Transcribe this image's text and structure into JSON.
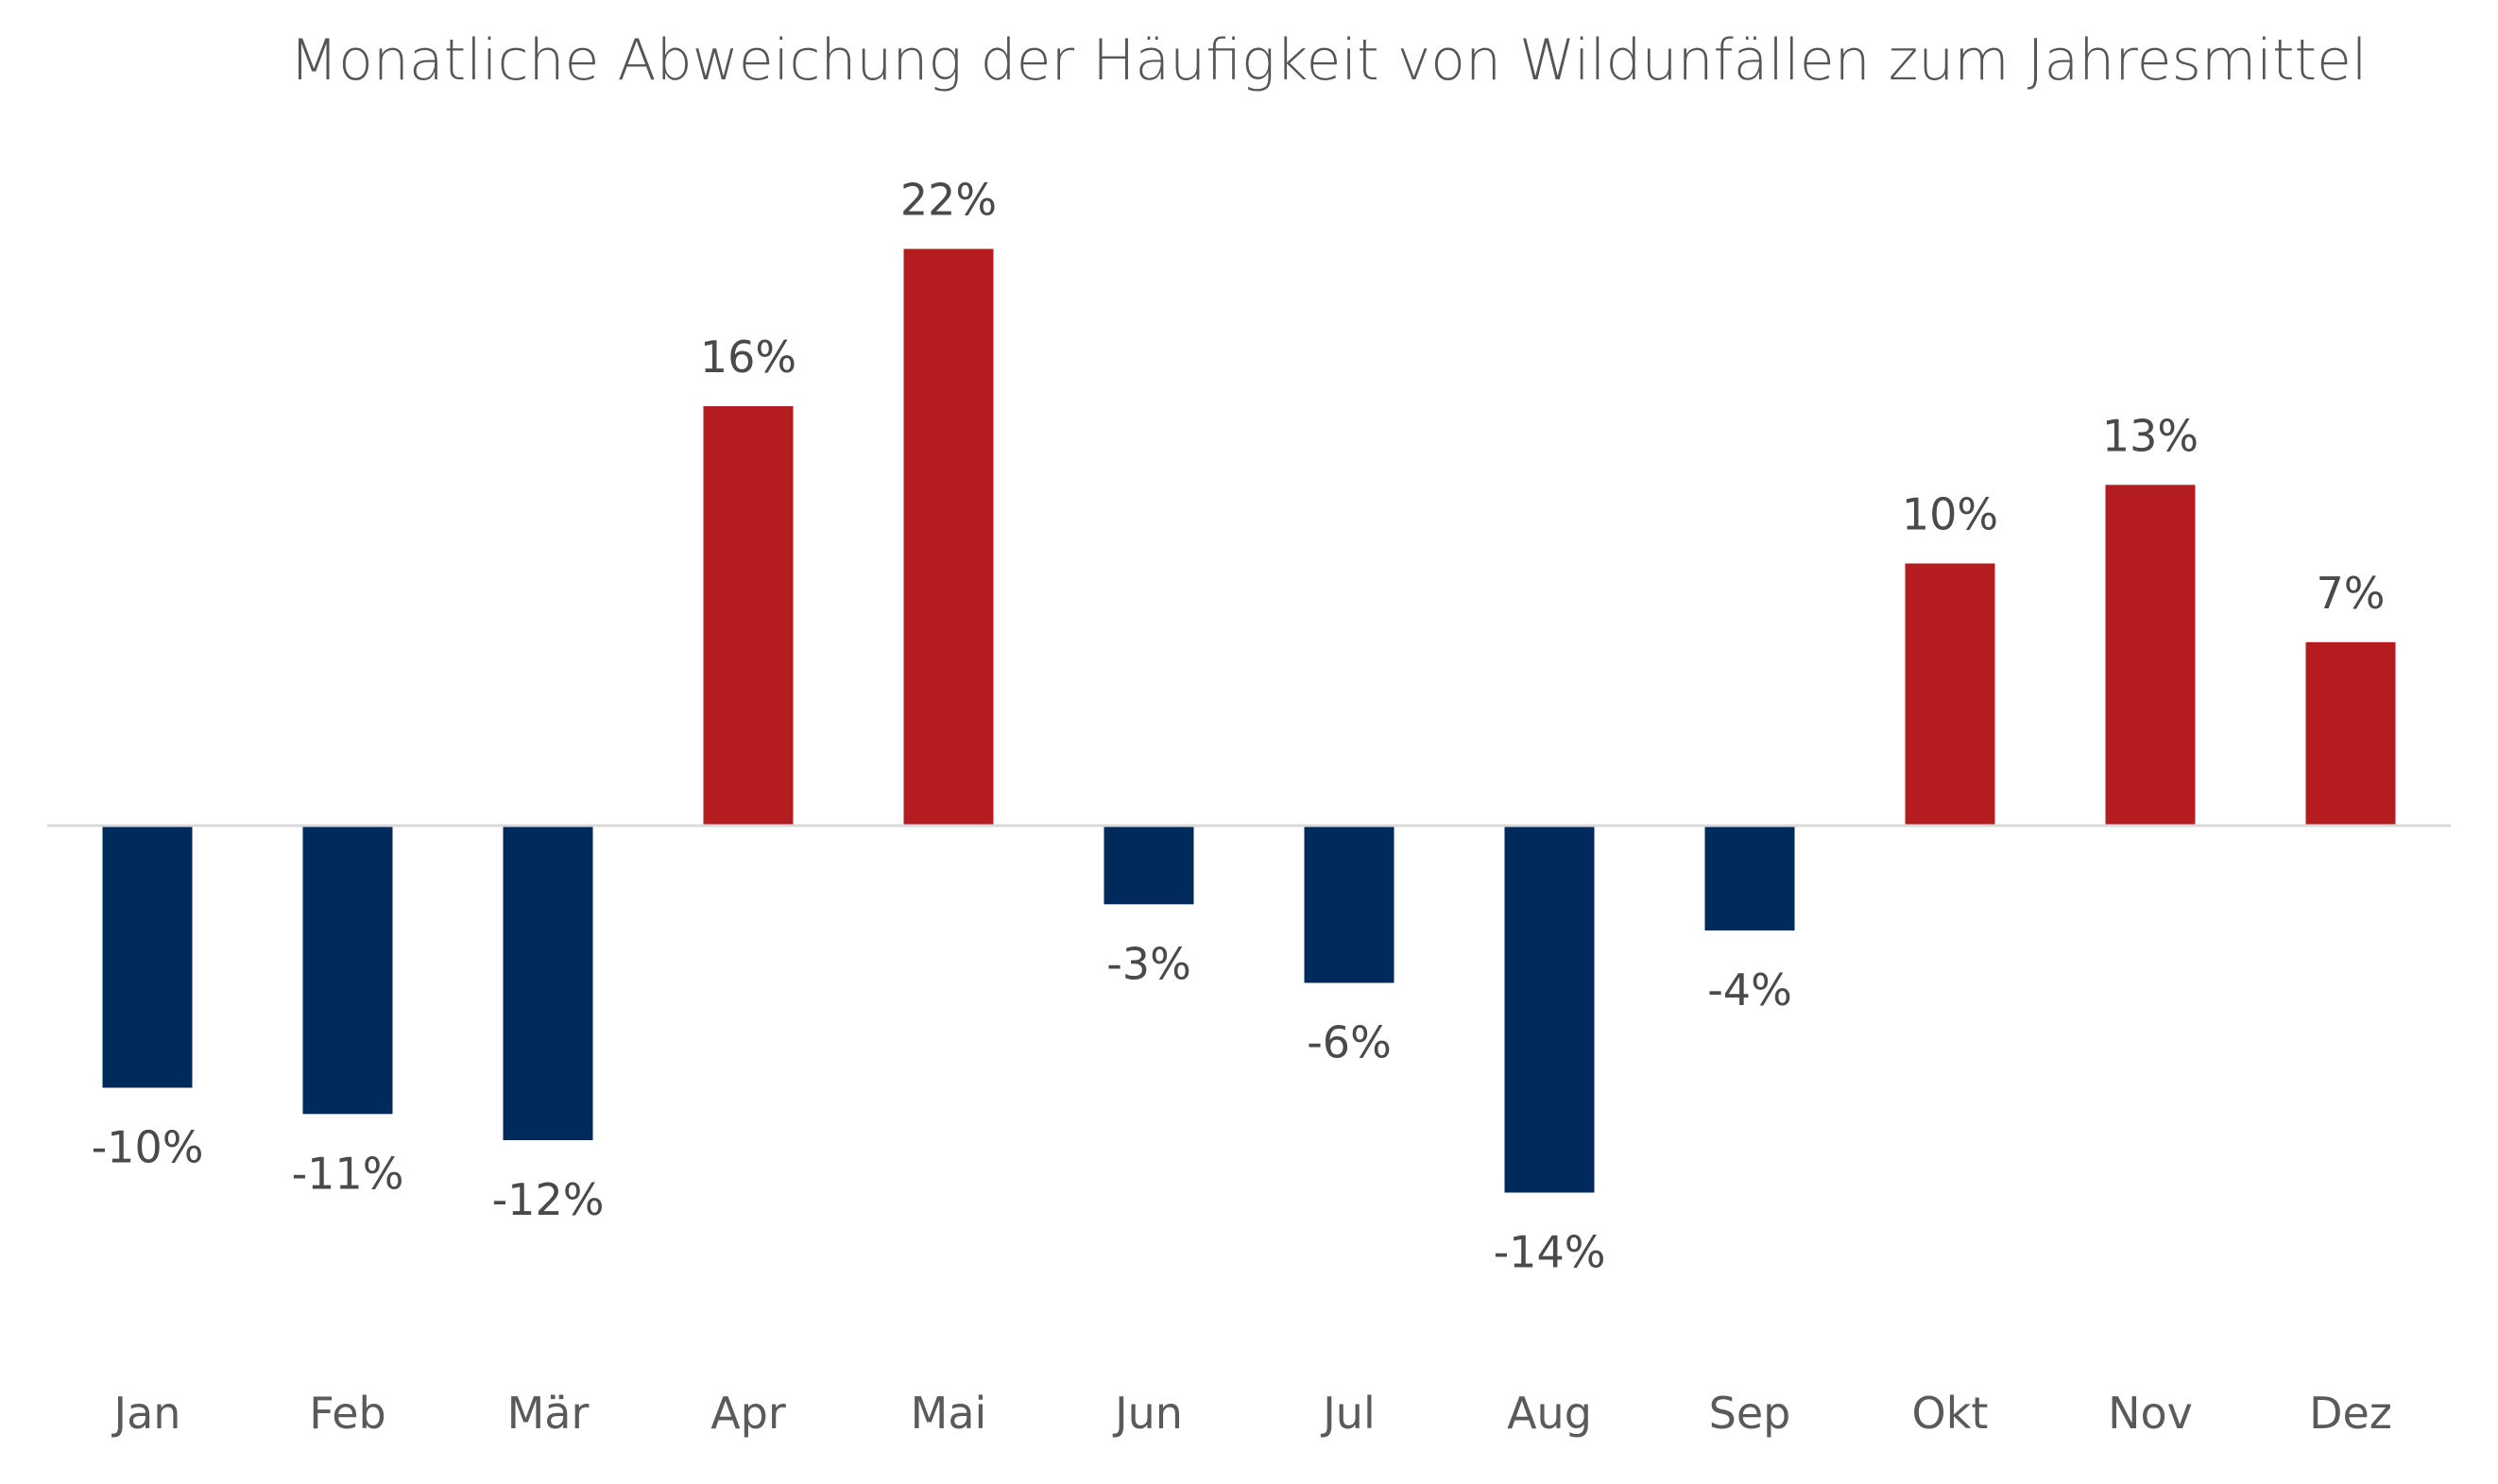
{
  "chart_data": {
    "type": "bar",
    "title": "Monatliche Abweichung der Häufigkeit von Wildunfällen zum Jahresmittel",
    "xlabel": "",
    "ylabel": "",
    "categories": [
      "Jan",
      "Feb",
      "Mär",
      "Apr",
      "Mai",
      "Jun",
      "Jul",
      "Aug",
      "Sep",
      "Okt",
      "Nov",
      "Dez"
    ],
    "values": [
      -10,
      -11,
      -12,
      16,
      22,
      -3,
      -6,
      -14,
      -4,
      10,
      13,
      7
    ],
    "data_labels": [
      "-10%",
      "-11%",
      "-12%",
      "16%",
      "22%",
      "-3%",
      "-6%",
      "-14%",
      "-4%",
      "10%",
      "13%",
      "7%"
    ],
    "value_unit": "%",
    "ylim": [
      -18,
      26
    ],
    "grid": false,
    "legend": "none",
    "zero_line": true,
    "colors": {
      "positive": "#B51C1F",
      "negative": "#002A5C",
      "zero_line": "#D9D9D9",
      "text": "#555555"
    }
  }
}
